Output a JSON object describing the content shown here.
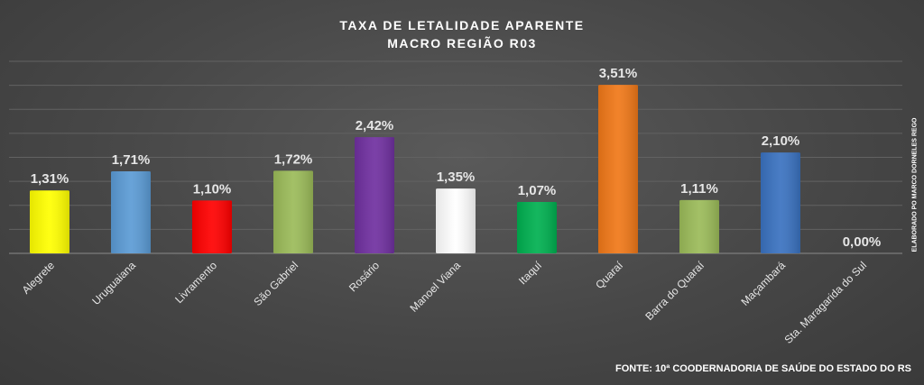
{
  "chart_data": {
    "type": "bar",
    "title": "TAXA  DE  LETALIDADE  APARENTE",
    "subtitle": "MACRO  REGIÃO  R03",
    "categories": [
      "Alegrete",
      "Uruguaiana",
      "Livramento",
      "São Gabriel",
      "Rosário",
      "Manoel Viana",
      "Itaquí",
      "Quaraí",
      "Barra do Quaraí",
      "Maçambará",
      "Sta. Maragarida do Sul"
    ],
    "values": [
      1.31,
      1.71,
      1.1,
      1.72,
      2.42,
      1.35,
      1.07,
      3.51,
      1.11,
      2.1,
      0.0
    ],
    "value_labels": [
      "1,31%",
      "1,71%",
      "1,10%",
      "1,72%",
      "2,42%",
      "1,35%",
      "1,07%",
      "3,51%",
      "1,11%",
      "2,10%",
      "0,00%"
    ],
    "bar_colors": [
      "#ffff00",
      "#5b9bd5",
      "#ff0000",
      "#9bbb59",
      "#7030a0",
      "#ffffff",
      "#00b050",
      "#f07818",
      "#9bbb59",
      "#3a72c0",
      "#9bbb59"
    ],
    "unit": "%",
    "ylim": [
      0,
      4
    ],
    "y_gridlines": 8,
    "grid": true,
    "legend": "none",
    "xlabel": "",
    "ylabel": ""
  },
  "side_note": "ELABORADO PO  MARCO DORNELES REGO",
  "source": "FONTE: 10ª COODERNADORIA DE SAÚDE DO ESTADO DO RS",
  "colors": {
    "background": "#474747",
    "gridline": "#626262",
    "text": "#ffffff",
    "label_text": "#e6e6e6"
  }
}
